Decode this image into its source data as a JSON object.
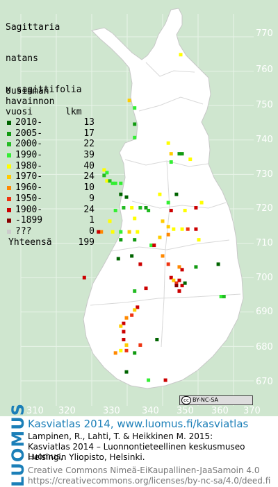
{
  "title": [
    "Sagittaria",
    "natans",
    "x sagittifolia"
  ],
  "legend": {
    "header": [
      "Uusimman",
      "havainnon",
      "vuosi      lkm"
    ],
    "rows": [
      {
        "period": "2010-",
        "count": "13",
        "color": "#006400"
      },
      {
        "period": "2005-",
        "count": "17",
        "color": "#119a11"
      },
      {
        "period": "2000-",
        "count": "22",
        "color": "#22bb22"
      },
      {
        "period": "1990-",
        "count": "39",
        "color": "#33ee33"
      },
      {
        "period": "1980-",
        "count": "40",
        "color": "#ffff00"
      },
      {
        "period": "1970-",
        "count": "24",
        "color": "#ffcc00"
      },
      {
        "period": "1960-",
        "count": "10",
        "color": "#ff8800"
      },
      {
        "period": "1950-",
        "count": "9",
        "color": "#ee3311"
      },
      {
        "period": "1900-",
        "count": "24",
        "color": "#cc0000"
      },
      {
        "period": "-1899",
        "count": "1",
        "color": "#880000"
      },
      {
        "period": "???",
        "count": "0",
        "color": "#cccccc"
      }
    ],
    "total_label": "Yhteensä",
    "total_count": "199"
  },
  "y_ticks": [
    "770",
    "760",
    "750",
    "740",
    "730",
    "720",
    "710",
    "700",
    "690",
    "680",
    "670"
  ],
  "x_ticks": [
    "310",
    "320",
    "330",
    "340",
    "350",
    "360",
    "370"
  ],
  "license_badge": "BY-NC-SA",
  "footer": {
    "logo_text": "LUOMUS",
    "line1": "Kasviatlas 2014, www.luomus.fi/kasviatlas",
    "line2": "Lampinen, R., Lahti, T. & Heikkinen M. 2015:",
    "line3": "Kasviatlas 2014 – Luonnontieteellinen keskusmuseo Luomus,",
    "line4": "Helsingin Yliopisto, Helsinki.",
    "line5": "Creative Commons Nimeä-EiKaupallinen-JaaSamoin 4.0",
    "line6": "https://creativecommons.org/licenses/by-nc-sa/4.0/deed.fi"
  },
  "observations": [
    {
      "e": 355.1,
      "n": 764.8,
      "p": "1980-"
    },
    {
      "e": 340.6,
      "n": 751.5,
      "p": "1970-"
    },
    {
      "e": 342.1,
      "n": 749.3,
      "p": "1990-"
    },
    {
      "e": 342.1,
      "n": 744.6,
      "p": "2005-"
    },
    {
      "e": 342.1,
      "n": 740.7,
      "p": "1990-"
    },
    {
      "e": 351.6,
      "n": 739.1,
      "p": "1980-"
    },
    {
      "e": 352.4,
      "n": 736.0,
      "p": "1970-"
    },
    {
      "e": 352.4,
      "n": 733.6,
      "p": "1990-"
    },
    {
      "e": 354.7,
      "n": 736.0,
      "p": "2005-"
    },
    {
      "e": 355.5,
      "n": 736.0,
      "p": "2005-"
    },
    {
      "e": 357.8,
      "n": 734.4,
      "p": "1980-"
    },
    {
      "e": 333.5,
      "n": 731.3,
      "p": "1980-"
    },
    {
      "e": 334.3,
      "n": 730.5,
      "p": "1990-"
    },
    {
      "e": 333.5,
      "n": 729.7,
      "p": "2000-"
    },
    {
      "e": 334.3,
      "n": 728.1,
      "p": "1980-"
    },
    {
      "e": 335.1,
      "n": 728.1,
      "p": "2000-"
    },
    {
      "e": 335.9,
      "n": 727.4,
      "p": "1990-"
    },
    {
      "e": 336.7,
      "n": 727.4,
      "p": "1990-"
    },
    {
      "e": 338.2,
      "n": 727.4,
      "p": "1990-"
    },
    {
      "e": 338.2,
      "n": 724.2,
      "p": "2010-"
    },
    {
      "e": 339.8,
      "n": 723.4,
      "p": "2010-"
    },
    {
      "e": 339.0,
      "n": 720.3,
      "p": "2000-"
    },
    {
      "e": 341.3,
      "n": 720.3,
      "p": "1980-"
    },
    {
      "e": 343.7,
      "n": 720.3,
      "p": "2000-"
    },
    {
      "e": 345.3,
      "n": 720.3,
      "p": "2005-"
    },
    {
      "e": 346.0,
      "n": 719.5,
      "p": "2000-"
    },
    {
      "e": 342.1,
      "n": 717.2,
      "p": "1980-"
    },
    {
      "e": 336.7,
      "n": 719.5,
      "p": "1990-"
    },
    {
      "e": 349.2,
      "n": 724.2,
      "p": "1980-"
    },
    {
      "e": 351.6,
      "n": 721.8,
      "p": "1990-"
    },
    {
      "e": 353.9,
      "n": 724.2,
      "p": "2010-"
    },
    {
      "e": 352.4,
      "n": 719.5,
      "p": "1900-"
    },
    {
      "e": 356.3,
      "n": 719.5,
      "p": "1980-"
    },
    {
      "e": 359.4,
      "n": 720.3,
      "p": "1900-"
    },
    {
      "e": 361.0,
      "n": 721.8,
      "p": "1980-"
    },
    {
      "e": 350.0,
      "n": 716.4,
      "p": "1970-"
    },
    {
      "e": 351.6,
      "n": 714.8,
      "p": "1970-"
    },
    {
      "e": 353.1,
      "n": 714.1,
      "p": "1980-"
    },
    {
      "e": 355.5,
      "n": 714.1,
      "p": "1980-"
    },
    {
      "e": 357.1,
      "n": 714.1,
      "p": "1950-"
    },
    {
      "e": 359.4,
      "n": 714.1,
      "p": "1900-"
    },
    {
      "e": 351.6,
      "n": 712.5,
      "p": "1960-"
    },
    {
      "e": 349.2,
      "n": 711.7,
      "p": "1970-"
    },
    {
      "e": 335.1,
      "n": 716.4,
      "p": "1980-"
    },
    {
      "e": 335.9,
      "n": 713.3,
      "p": "1980-"
    },
    {
      "e": 332.7,
      "n": 713.3,
      "p": "1960-"
    },
    {
      "e": 331.9,
      "n": 713.3,
      "p": "1900-"
    },
    {
      "e": 338.2,
      "n": 713.3,
      "p": "1990-"
    },
    {
      "e": 340.6,
      "n": 713.3,
      "p": "1970-"
    },
    {
      "e": 342.9,
      "n": 713.3,
      "p": "1980-"
    },
    {
      "e": 338.2,
      "n": 711.0,
      "p": "2005-"
    },
    {
      "e": 342.1,
      "n": 711.0,
      "p": "2005-"
    },
    {
      "e": 346.8,
      "n": 709.4,
      "p": "1990-"
    },
    {
      "e": 341.3,
      "n": 706.3,
      "p": "2010-"
    },
    {
      "e": 343.7,
      "n": 703.9,
      "p": "1900-"
    },
    {
      "e": 337.5,
      "n": 705.5,
      "p": "2010-"
    },
    {
      "e": 347.6,
      "n": 709.4,
      "p": "1900-"
    },
    {
      "e": 350.0,
      "n": 706.3,
      "p": "1960-"
    },
    {
      "e": 351.6,
      "n": 703.9,
      "p": "1950-"
    },
    {
      "e": 354.7,
      "n": 703.1,
      "p": "1960-"
    },
    {
      "e": 355.5,
      "n": 702.3,
      "p": "1900-"
    },
    {
      "e": 352.4,
      "n": 700.0,
      "p": "1900-"
    },
    {
      "e": 353.1,
      "n": 699.2,
      "p": "1970-"
    },
    {
      "e": 353.9,
      "n": 698.4,
      "p": "1950-"
    },
    {
      "e": 354.7,
      "n": 699.2,
      "p": "1900-"
    },
    {
      "e": 353.9,
      "n": 697.7,
      "p": "-1899"
    },
    {
      "e": 355.5,
      "n": 697.7,
      "p": "1900-"
    },
    {
      "e": 354.7,
      "n": 696.1,
      "p": "1900-"
    },
    {
      "e": 356.3,
      "n": 698.4,
      "p": "2010-"
    },
    {
      "e": 359.4,
      "n": 703.1,
      "p": "2005-"
    },
    {
      "e": 360.2,
      "n": 711.0,
      "p": "1980-"
    },
    {
      "e": 365.7,
      "n": 703.9,
      "p": "2010-"
    },
    {
      "e": 366.5,
      "n": 694.5,
      "p": "1990-"
    },
    {
      "e": 367.3,
      "n": 694.5,
      "p": "2000-"
    },
    {
      "e": 327.9,
      "n": 700.0,
      "p": "1900-"
    },
    {
      "e": 345.3,
      "n": 696.9,
      "p": "1900-"
    },
    {
      "e": 342.1,
      "n": 696.1,
      "p": "2000-"
    },
    {
      "e": 342.9,
      "n": 691.4,
      "p": "1900-"
    },
    {
      "e": 342.1,
      "n": 690.6,
      "p": "1970-"
    },
    {
      "e": 341.3,
      "n": 689.1,
      "p": "1950-"
    },
    {
      "e": 339.8,
      "n": 688.3,
      "p": "1960-"
    },
    {
      "e": 339.0,
      "n": 686.7,
      "p": "1900-"
    },
    {
      "e": 338.2,
      "n": 685.9,
      "p": "1970-"
    },
    {
      "e": 339.0,
      "n": 684.3,
      "p": "1900-"
    },
    {
      "e": 339.0,
      "n": 682.0,
      "p": "1900-"
    },
    {
      "e": 339.8,
      "n": 680.4,
      "p": "1970-"
    },
    {
      "e": 338.2,
      "n": 678.8,
      "p": "1980-"
    },
    {
      "e": 339.8,
      "n": 678.8,
      "p": "1950-"
    },
    {
      "e": 336.7,
      "n": 678.1,
      "p": "1960-"
    },
    {
      "e": 342.1,
      "n": 678.1,
      "p": "2005-"
    },
    {
      "e": 348.4,
      "n": 682.0,
      "p": "2010-"
    },
    {
      "e": 343.7,
      "n": 680.4,
      "p": "1950-"
    },
    {
      "e": 339.8,
      "n": 672.6,
      "p": "2010-"
    },
    {
      "e": 346.0,
      "n": 670.2,
      "p": "1990-"
    },
    {
      "e": 350.8,
      "n": 670.2,
      "p": "1900-"
    }
  ]
}
